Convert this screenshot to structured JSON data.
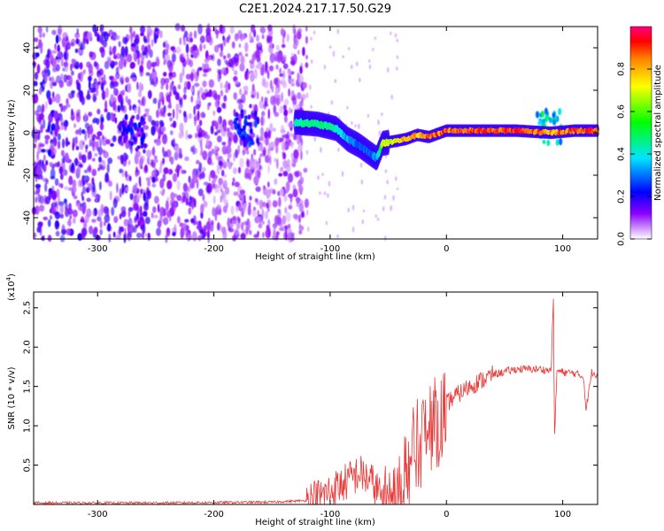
{
  "title": "C2E1.2024.217.17.50.G29",
  "chart_data": [
    {
      "type": "heatmap",
      "xlabel": "Height of straight line (km)",
      "ylabel": "Frequency (Hz)",
      "xlim": [
        -355,
        130
      ],
      "ylim": [
        -50,
        50
      ],
      "x_ticks": [
        -300,
        -200,
        -100,
        0,
        100
      ],
      "y_ticks": [
        -40,
        -20,
        0,
        20,
        40
      ],
      "colorbar": {
        "label": "Normalized spectral amplitude",
        "range": [
          0.0,
          1.0
        ],
        "ticks": [
          0.0,
          0.2,
          0.4,
          0.6,
          0.8
        ],
        "colormap": [
          "#ffffff",
          "#8a00ff",
          "#0000ff",
          "#00e5ff",
          "#00ff00",
          "#ffff00",
          "#ff8000",
          "#ff0000",
          "#ff0080"
        ]
      },
      "ridge": {
        "x": [
          -130,
          -110,
          -95,
          -85,
          -75,
          -65,
          -60,
          -55,
          -45,
          -35,
          -25,
          -15,
          -5,
          0,
          20,
          60,
          90,
          110,
          130
        ],
        "freq": [
          5,
          4,
          2,
          -3,
          -6,
          -10,
          -12,
          -5,
          -4,
          -3,
          -1,
          -2,
          0,
          1,
          1,
          1,
          0,
          1,
          1
        ],
        "amplitude": [
          0.45,
          0.5,
          0.45,
          0.35,
          0.3,
          0.3,
          0.35,
          0.7,
          0.75,
          0.8,
          0.85,
          0.9,
          0.9,
          0.92,
          0.95,
          0.95,
          0.85,
          0.95,
          0.95
        ]
      },
      "clusters": [
        {
          "x": -172,
          "freq": 2,
          "amplitude": 0.25
        },
        {
          "x": -270,
          "freq": 0,
          "amplitude": 0.2
        },
        {
          "x": 88,
          "freq": 3,
          "amplitude": 0.45
        }
      ]
    },
    {
      "type": "line",
      "xlabel": "Height of straight line (km)",
      "ylabel": "SNR (10 * v/v)",
      "y_multiplier": "(x10",
      "y_multiplier_exponent": "4",
      "y_multiplier_close": ")",
      "xlim": [
        -355,
        130
      ],
      "ylim": [
        0,
        2.7
      ],
      "x_ticks": [
        -300,
        -200,
        -100,
        0,
        100
      ],
      "y_ticks": [
        0.5,
        1.0,
        1.5,
        2.0,
        2.5
      ],
      "color": "#e83a3a",
      "x": [
        -355,
        -250,
        -150,
        -120,
        -105,
        -90,
        -75,
        -65,
        -55,
        -45,
        -35,
        -25,
        -15,
        -5,
        5,
        20,
        40,
        60,
        80,
        90,
        92,
        93,
        95,
        100,
        110,
        118,
        120,
        125,
        130
      ],
      "y": [
        0.02,
        0.02,
        0.03,
        0.05,
        0.12,
        0.25,
        0.4,
        0.3,
        0.1,
        0.25,
        0.55,
        0.85,
        1.05,
        1.2,
        1.35,
        1.5,
        1.65,
        1.72,
        1.72,
        1.7,
        2.65,
        0.85,
        1.7,
        1.68,
        1.67,
        1.62,
        1.2,
        1.68,
        1.65
      ]
    }
  ]
}
